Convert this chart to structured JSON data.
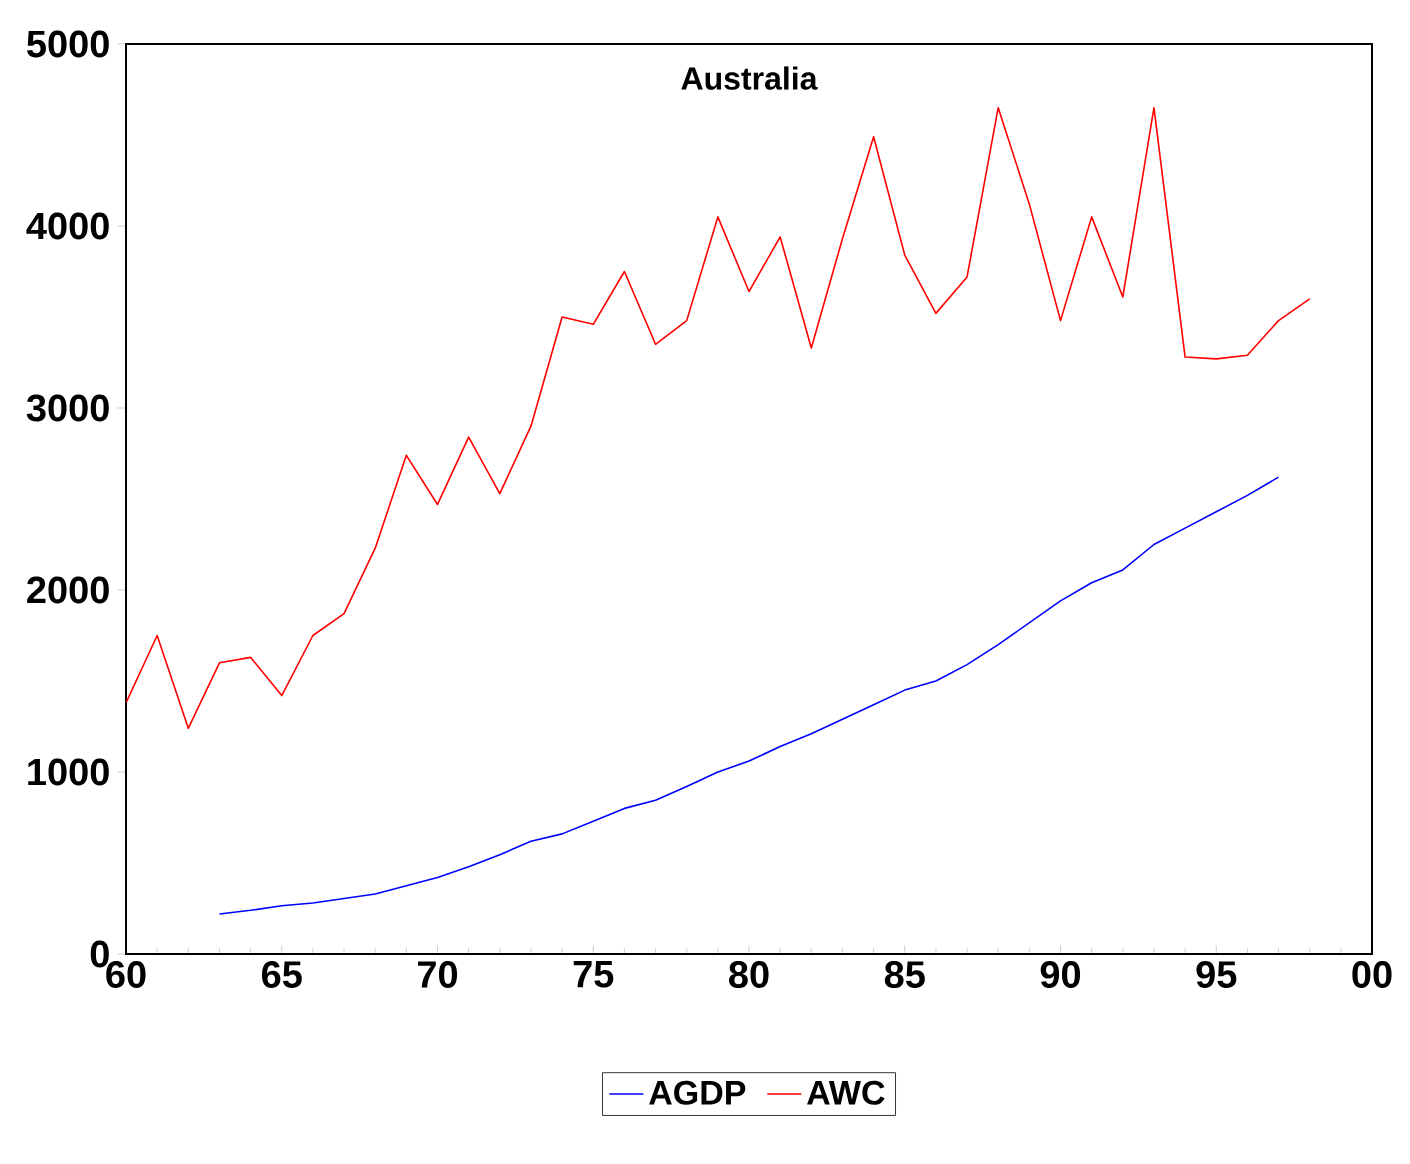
{
  "chart_data": {
    "type": "line",
    "title": "Australia",
    "x": [
      1960,
      1961,
      1962,
      1963,
      1964,
      1965,
      1966,
      1967,
      1968,
      1969,
      1970,
      1971,
      1972,
      1973,
      1974,
      1975,
      1976,
      1977,
      1978,
      1979,
      1980,
      1981,
      1982,
      1983,
      1984,
      1985,
      1986,
      1987,
      1988,
      1989,
      1990,
      1991,
      1992,
      1993,
      1994,
      1995,
      1996,
      1997,
      1998
    ],
    "series": [
      {
        "name": "AGDP",
        "color": "#0000ff",
        "values": [
          null,
          null,
          null,
          220,
          240,
          265,
          280,
          305,
          330,
          375,
          420,
          480,
          545,
          620,
          660,
          730,
          800,
          845,
          920,
          1000,
          1060,
          1140,
          1210,
          1290,
          1370,
          1450,
          1500,
          1590,
          1700,
          1820,
          1940,
          2040,
          2110,
          2250,
          2340,
          2430,
          2520,
          2620,
          null
        ]
      },
      {
        "name": "AWC",
        "color": "#ff0000",
        "values": [
          1380,
          1750,
          1240,
          1600,
          1630,
          1420,
          1750,
          1870,
          2230,
          2740,
          2470,
          2840,
          2530,
          2900,
          3500,
          3460,
          3750,
          3350,
          3480,
          4050,
          3640,
          3940,
          3330,
          3930,
          4490,
          3840,
          3520,
          3720,
          4650,
          4120,
          3480,
          4050,
          3610,
          4650,
          3280,
          3270,
          3290,
          3480,
          3600
        ]
      }
    ],
    "xlim": [
      1960,
      2000
    ],
    "xticks": [
      {
        "value": 1960,
        "label": "60"
      },
      {
        "value": 1965,
        "label": "65"
      },
      {
        "value": 1970,
        "label": "70"
      },
      {
        "value": 1975,
        "label": "75"
      },
      {
        "value": 1980,
        "label": "80"
      },
      {
        "value": 1985,
        "label": "85"
      },
      {
        "value": 1990,
        "label": "90"
      },
      {
        "value": 1995,
        "label": "95"
      },
      {
        "value": 2000,
        "label": "00"
      }
    ],
    "ylim": [
      0,
      5000
    ],
    "yticks": [
      0,
      1000,
      2000,
      3000,
      4000,
      5000
    ],
    "grid": false,
    "legend": "bottom",
    "marker": "none",
    "line_style": "solid"
  }
}
